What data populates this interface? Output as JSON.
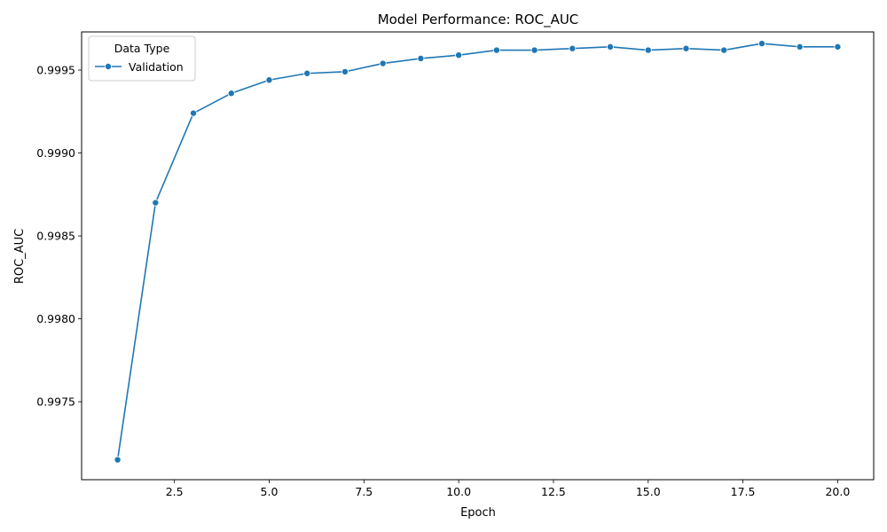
{
  "chart_data": {
    "type": "line",
    "title": "Model Performance: ROC_AUC",
    "xlabel": "Epoch",
    "ylabel": "ROC_AUC",
    "xlim": [
      0.05,
      20.95
    ],
    "ylim": [
      0.99703,
      0.99973
    ],
    "x_ticks": [
      2.5,
      5.0,
      7.5,
      10.0,
      12.5,
      15.0,
      17.5,
      20.0
    ],
    "x_tick_labels": [
      "2.5",
      "5.0",
      "7.5",
      "10.0",
      "12.5",
      "15.0",
      "17.5",
      "20.0"
    ],
    "y_ticks": [
      0.9975,
      0.998,
      0.9985,
      0.999,
      0.9995
    ],
    "y_tick_labels": [
      "0.9975",
      "0.9980",
      "0.9985",
      "0.9990",
      "0.9995"
    ],
    "grid": false,
    "legend": {
      "title": "Data Type",
      "placement": "top-left"
    },
    "series": [
      {
        "name": "Validation",
        "color": "#1f77b4",
        "marker": "circle",
        "x": [
          1,
          2,
          3,
          4,
          5,
          6,
          7,
          8,
          9,
          10,
          11,
          12,
          13,
          14,
          15,
          16,
          17,
          18,
          19,
          20
        ],
        "values": [
          0.99715,
          0.9987,
          0.99924,
          0.99936,
          0.99944,
          0.99948,
          0.99949,
          0.99954,
          0.99957,
          0.99959,
          0.99962,
          0.99962,
          0.99963,
          0.99964,
          0.99962,
          0.99963,
          0.99962,
          0.99966,
          0.99964,
          0.99964
        ]
      }
    ]
  }
}
